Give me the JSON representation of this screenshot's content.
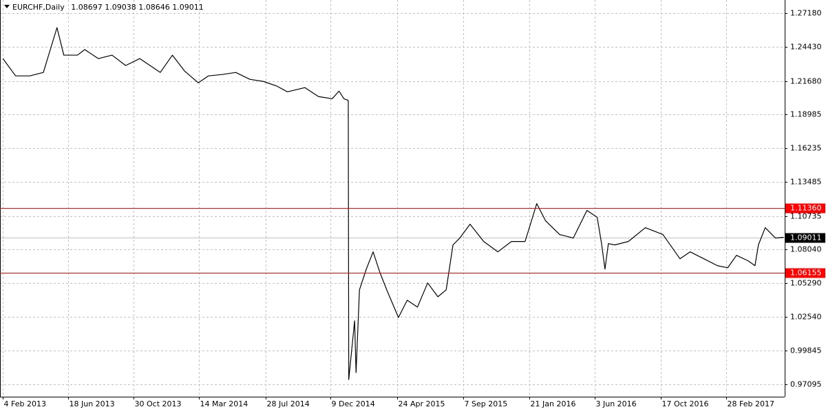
{
  "chart_data": {
    "type": "line",
    "symbol": "EURCHF,Daily",
    "ohlc": [
      1.08697,
      1.09038,
      1.08646,
      1.09011
    ],
    "x": [
      "2013-02-04",
      "2013-03-02",
      "2013-03-31",
      "2013-04-28",
      "2013-05-26",
      "2013-06-09",
      "2013-07-07",
      "2013-07-22",
      "2013-08-19",
      "2013-09-16",
      "2013-10-14",
      "2013-11-12",
      "2013-12-24",
      "2014-01-18",
      "2014-02-12",
      "2014-03-12",
      "2014-04-02",
      "2014-04-30",
      "2014-05-28",
      "2014-06-26",
      "2014-07-24",
      "2014-08-21",
      "2014-09-11",
      "2014-10-17",
      "2014-11-14",
      "2014-12-12",
      "2014-12-26",
      "2015-01-05",
      "2015-01-14",
      "2015-01-15",
      "2015-01-27",
      "2015-01-30",
      "2015-02-06",
      "2015-02-20",
      "2015-03-06",
      "2015-03-20",
      "2015-04-03",
      "2015-04-27",
      "2015-05-15",
      "2015-06-05",
      "2015-06-26",
      "2015-07-17",
      "2015-08-03",
      "2015-08-17",
      "2015-08-31",
      "2015-09-21",
      "2015-10-19",
      "2015-11-17",
      "2015-12-15",
      "2016-01-12",
      "2016-02-05",
      "2016-02-23",
      "2016-03-23",
      "2016-04-20",
      "2016-05-18",
      "2016-06-08",
      "2016-06-17",
      "2016-06-24",
      "2016-07-01",
      "2016-07-14",
      "2016-08-11",
      "2016-09-15",
      "2016-10-21",
      "2016-11-25",
      "2016-12-16",
      "2017-01-13",
      "2017-02-10",
      "2017-03-03",
      "2017-03-21",
      "2017-04-14",
      "2017-04-28",
      "2017-05-05",
      "2017-05-19",
      "2017-06-09",
      "2017-06-26"
    ],
    "series": [
      {
        "name": "EURCHF",
        "color": "#000000",
        "values": [
          1.2349,
          1.2209,
          1.2209,
          1.2237,
          1.26,
          1.2377,
          1.2377,
          1.2422,
          1.2349,
          1.2377,
          1.2293,
          1.2349,
          1.2237,
          1.2377,
          1.2248,
          1.2153,
          1.2209,
          1.222,
          1.2237,
          1.2181,
          1.2164,
          1.2125,
          1.208,
          1.2114,
          1.2041,
          1.2024,
          1.2086,
          1.2024,
          1.201,
          0.9748,
          1.0224,
          0.9804,
          1.0475,
          1.0643,
          1.0783,
          1.0615,
          1.0475,
          1.0251,
          1.0391,
          1.0335,
          1.0531,
          1.0419,
          1.0475,
          1.0839,
          1.0895,
          1.1007,
          1.0867,
          1.0783,
          1.0867,
          1.0867,
          1.1174,
          1.1035,
          1.0923,
          1.0895,
          1.1119,
          1.1063,
          1.085,
          1.0643,
          1.085,
          1.0839,
          1.0867,
          1.0979,
          1.0923,
          1.0727,
          1.0783,
          1.0727,
          1.0671,
          1.0654,
          1.0755,
          1.071,
          1.0671,
          1.0839,
          1.0979,
          1.0895,
          1.09011
        ]
      }
    ],
    "xlim": [
      "2013-01-29",
      "2017-06-28"
    ],
    "xticks": [
      {
        "value": "2013-02-04",
        "label": "4 Feb 2013"
      },
      {
        "value": "2013-06-18",
        "label": "18 Jun 2013"
      },
      {
        "value": "2013-10-30",
        "label": "30 Oct 2013"
      },
      {
        "value": "2014-03-14",
        "label": "14 Mar 2014"
      },
      {
        "value": "2014-07-28",
        "label": "28 Jul 2014"
      },
      {
        "value": "2014-12-09",
        "label": "9 Dec 2014"
      },
      {
        "value": "2015-04-24",
        "label": "24 Apr 2015"
      },
      {
        "value": "2015-09-07",
        "label": "7 Sep 2015"
      },
      {
        "value": "2016-01-21",
        "label": "21 Jan 2016"
      },
      {
        "value": "2016-06-03",
        "label": "3 Jun 2016"
      },
      {
        "value": "2016-10-17",
        "label": "17 Oct 2016"
      },
      {
        "value": "2017-02-28",
        "label": "28 Feb 2017"
      }
    ],
    "ylim": [
      0.9609,
      1.2824
    ],
    "yticks": [
      {
        "value": 1.2718,
        "label": "1.27180"
      },
      {
        "value": 1.2443,
        "label": "1.24430"
      },
      {
        "value": 1.2168,
        "label": "1.21680"
      },
      1.18985,
      1.16235,
      1.13485,
      1.10735,
      {
        "value": 1.0804,
        "label": "1.08040"
      },
      {
        "value": 1.0529,
        "label": "1.05290"
      },
      {
        "value": 1.0254,
        "label": "1.02540"
      },
      0.99845,
      0.97095
    ],
    "levels": [
      {
        "value": 1.1136,
        "label": "1.11360"
      },
      1.06155
    ],
    "level_color": "#ff0000",
    "grid": true
  }
}
